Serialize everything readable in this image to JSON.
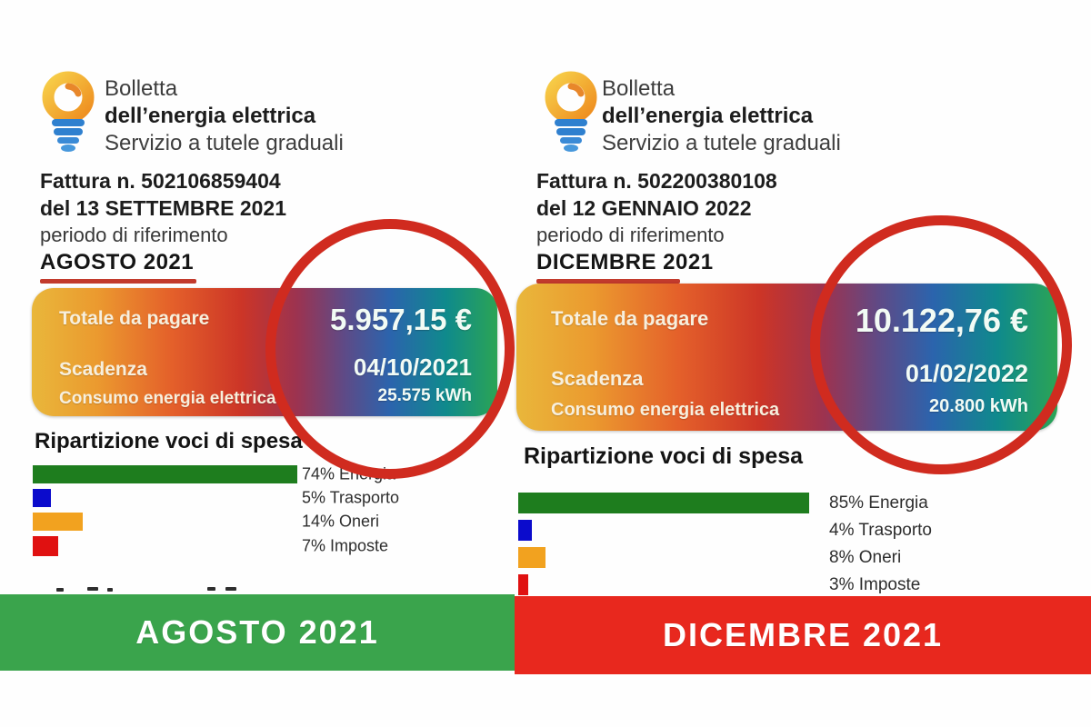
{
  "colors": {
    "highlight_circle": "#d02b1f",
    "underline_red": "#c23a2c",
    "band_august_green": "#3aa44c",
    "band_december_red": "#e8281e"
  },
  "bills": [
    {
      "header": {
        "title_line1": "Bolletta",
        "title_line2": "dell’energia elettrica",
        "subtitle": "Servizio a tutele graduali"
      },
      "invoice": {
        "number_line": "Fattura n. 502106859404",
        "date_line": "del 13 SETTEMBRE 2021",
        "period_label": "periodo di riferimento",
        "period_value": "AGOSTO 2021"
      },
      "summary": {
        "total_label": "Totale da pagare",
        "total_value": "5.957,15 €",
        "due_label": "Scadenza",
        "due_value": "04/10/2021",
        "consumption_label": "Consumo energia elettrica",
        "consumption_value": "25.575 kWh"
      },
      "breakdown": {
        "title": "Ripartizione voci di spesa",
        "items": [
          {
            "label": "74% Energia",
            "pct": 74,
            "color": "#1e7d1e"
          },
          {
            "label": "5% Trasporto",
            "pct": 5,
            "color": "#0b0bcc"
          },
          {
            "label": "14% Oneri",
            "pct": 14,
            "color": "#f2a21f"
          },
          {
            "label": "7% Imposte",
            "pct": 7,
            "color": "#e01111"
          }
        ]
      },
      "month_banner": {
        "label": "AGOSTO 2021",
        "color": "#3aa44c"
      }
    },
    {
      "header": {
        "title_line1": "Bolletta",
        "title_line2": "dell’energia elettrica",
        "subtitle": "Servizio a tutele graduali"
      },
      "invoice": {
        "number_line": "Fattura n. 502200380108",
        "date_line": "del 12 GENNAIO 2022",
        "period_label": "periodo di riferimento",
        "period_value": "DICEMBRE 2021"
      },
      "summary": {
        "total_label": "Totale da pagare",
        "total_value": "10.122,76 €",
        "due_label": "Scadenza",
        "due_value": "01/02/2022",
        "consumption_label": "Consumo energia elettrica",
        "consumption_value": "20.800 kWh"
      },
      "breakdown": {
        "title": "Ripartizione voci di spesa",
        "items": [
          {
            "label": "85% Energia",
            "pct": 85,
            "color": "#1e7d1e"
          },
          {
            "label": "4% Trasporto",
            "pct": 4,
            "color": "#0b0bcc"
          },
          {
            "label": "8% Oneri",
            "pct": 8,
            "color": "#f2a21f"
          },
          {
            "label": "3% Imposte",
            "pct": 3,
            "color": "#e01111"
          }
        ]
      },
      "month_banner": {
        "label": "DICEMBRE 2021",
        "color": "#e8281e"
      }
    }
  ],
  "chart_data": [
    {
      "type": "bar",
      "orientation": "horizontal",
      "title": "Ripartizione voci di spesa",
      "context": "AGOSTO 2021 - Fattura n. 502106859404",
      "categories": [
        "Energia",
        "Trasporto",
        "Oneri",
        "Imposte"
      ],
      "values": [
        74,
        5,
        14,
        7
      ],
      "unit": "%",
      "xlim": [
        0,
        100
      ],
      "grid": false,
      "legend": "none",
      "bar_colors": [
        "#1e7d1e",
        "#0b0bcc",
        "#f2a21f",
        "#e01111"
      ]
    },
    {
      "type": "bar",
      "orientation": "horizontal",
      "title": "Ripartizione voci di spesa",
      "context": "DICEMBRE 2021 - Fattura n. 502200380108",
      "categories": [
        "Energia",
        "Trasporto",
        "Oneri",
        "Imposte"
      ],
      "values": [
        85,
        4,
        8,
        3
      ],
      "unit": "%",
      "xlim": [
        0,
        100
      ],
      "grid": false,
      "legend": "none",
      "bar_colors": [
        "#1e7d1e",
        "#0b0bcc",
        "#f2a21f",
        "#e01111"
      ]
    }
  ]
}
